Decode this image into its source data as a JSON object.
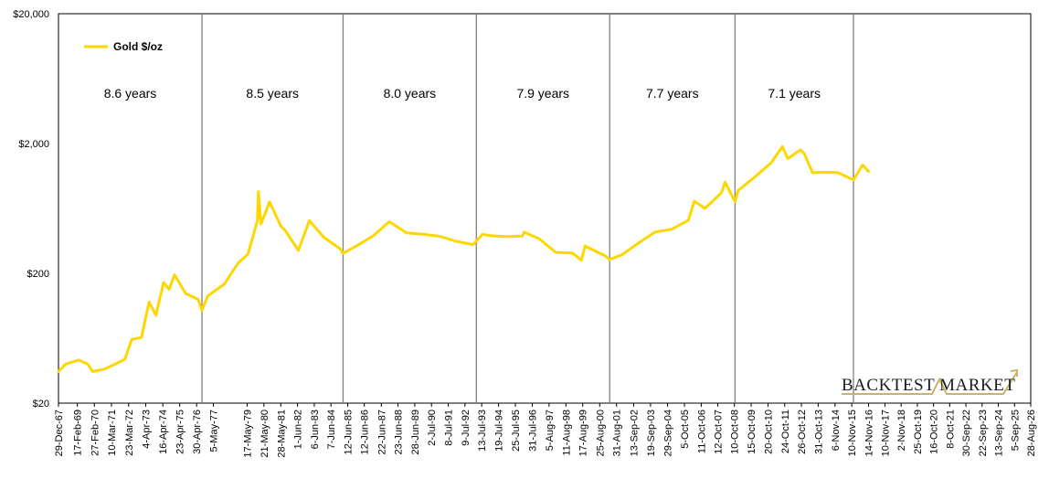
{
  "chart_data": {
    "type": "line",
    "yscale": "log",
    "ylim": [
      20,
      20000
    ],
    "y_ticks": [
      "$20",
      "$200",
      "$2,000",
      "$20,000"
    ],
    "y_tick_values": [
      20,
      200,
      2000,
      20000
    ],
    "x_range": [
      "1967-12-29",
      "2026-08-28"
    ],
    "x_ticks": [
      {
        "label": "29-Dec-67",
        "date": "1967-12-29"
      },
      {
        "label": "17-Feb-69",
        "date": "1969-02-17"
      },
      {
        "label": "27-Feb-70",
        "date": "1970-02-27"
      },
      {
        "label": "10-Mar-71",
        "date": "1971-03-10"
      },
      {
        "label": "23-Mar-72",
        "date": "1972-03-23"
      },
      {
        "label": "4-Apr-73",
        "date": "1973-04-04"
      },
      {
        "label": "16-Apr-74",
        "date": "1974-04-16"
      },
      {
        "label": "23-Apr-75",
        "date": "1975-04-23"
      },
      {
        "label": "30-Apr-76",
        "date": "1976-04-30"
      },
      {
        "label": "5-May-77",
        "date": "1977-05-05"
      },
      {
        "label": "17-May-79",
        "date": "1979-05-17"
      },
      {
        "label": "21-May-80",
        "date": "1980-05-21"
      },
      {
        "label": "28-May-81",
        "date": "1981-05-28"
      },
      {
        "label": "1-Jun-82",
        "date": "1982-06-01"
      },
      {
        "label": "6-Jun-83",
        "date": "1983-06-06"
      },
      {
        "label": "7-Jun-84",
        "date": "1984-06-07"
      },
      {
        "label": "12-Jun-85",
        "date": "1985-06-12"
      },
      {
        "label": "12-Jun-86",
        "date": "1986-06-12"
      },
      {
        "label": "22-Jun-87",
        "date": "1987-06-22"
      },
      {
        "label": "23-Jun-88",
        "date": "1988-06-23"
      },
      {
        "label": "28-Jun-89",
        "date": "1989-06-28"
      },
      {
        "label": "2-Jul-90",
        "date": "1990-07-02"
      },
      {
        "label": "8-Jul-91",
        "date": "1991-07-08"
      },
      {
        "label": "9-Jul-92",
        "date": "1992-07-09"
      },
      {
        "label": "13-Jul-93",
        "date": "1993-07-13"
      },
      {
        "label": "19-Jul-94",
        "date": "1994-07-19"
      },
      {
        "label": "25-Jul-95",
        "date": "1995-07-25"
      },
      {
        "label": "31-Jul-96",
        "date": "1996-07-31"
      },
      {
        "label": "5-Aug-97",
        "date": "1997-08-05"
      },
      {
        "label": "11-Aug-98",
        "date": "1998-08-11"
      },
      {
        "label": "17-Aug-99",
        "date": "1999-08-17"
      },
      {
        "label": "25-Aug-00",
        "date": "2000-08-25"
      },
      {
        "label": "31-Aug-01",
        "date": "2001-08-31"
      },
      {
        "label": "13-Sep-02",
        "date": "2002-09-13"
      },
      {
        "label": "19-Sep-03",
        "date": "2003-09-19"
      },
      {
        "label": "29-Sep-04",
        "date": "2004-09-29"
      },
      {
        "label": "5-Oct-05",
        "date": "2005-10-05"
      },
      {
        "label": "11-Oct-06",
        "date": "2006-10-11"
      },
      {
        "label": "12-Oct-07",
        "date": "2007-10-12"
      },
      {
        "label": "10-Oct-08",
        "date": "2008-10-10"
      },
      {
        "label": "15-Oct-09",
        "date": "2009-10-15"
      },
      {
        "label": "20-Oct-10",
        "date": "2010-10-20"
      },
      {
        "label": "24-Oct-11",
        "date": "2011-10-24"
      },
      {
        "label": "26-Oct-12",
        "date": "2012-10-26"
      },
      {
        "label": "31-Oct-13",
        "date": "2013-10-31"
      },
      {
        "label": "6-Nov-14",
        "date": "2014-11-06"
      },
      {
        "label": "10-Nov-15",
        "date": "2015-11-10"
      },
      {
        "label": "14-Nov-16",
        "date": "2016-11-14"
      },
      {
        "label": "10-Nov-17",
        "date": "2017-11-10"
      },
      {
        "label": "2-Nov-18",
        "date": "2018-11-02"
      },
      {
        "label": "25-Oct-19",
        "date": "2019-10-25"
      },
      {
        "label": "16-Oct-20",
        "date": "2020-10-16"
      },
      {
        "label": "8-Oct-21",
        "date": "2021-10-08"
      },
      {
        "label": "30-Sep-22",
        "date": "2022-09-30"
      },
      {
        "label": "22-Sep-23",
        "date": "2023-09-22"
      },
      {
        "label": "13-Sep-24",
        "date": "2024-09-13"
      },
      {
        "label": "5-Sep-25",
        "date": "2025-09-05"
      },
      {
        "label": "28-Aug-26",
        "date": "2026-08-28"
      }
    ],
    "series": [
      {
        "name": "Gold $/oz",
        "color": "#FFD700",
        "points": [
          [
            "1967-12-29",
            35.0
          ],
          [
            "1968-06-01",
            40.0
          ],
          [
            "1969-03-20",
            43.0
          ],
          [
            "1969-10-01",
            40.0
          ],
          [
            "1970-01-20",
            35.0
          ],
          [
            "1970-10-01",
            36.5
          ],
          [
            "1971-06-01",
            40.0
          ],
          [
            "1971-12-31",
            43.5
          ],
          [
            "1972-06-01",
            62.0
          ],
          [
            "1972-12-31",
            64.0
          ],
          [
            "1973-04-01",
            90.0
          ],
          [
            "1973-06-15",
            120.0
          ],
          [
            "1973-11-15",
            95.0
          ],
          [
            "1974-05-01",
            170.0
          ],
          [
            "1974-09-01",
            150.0
          ],
          [
            "1974-12-30",
            195.0
          ],
          [
            "1975-09-01",
            140.0
          ],
          [
            "1976-06-01",
            126.0
          ],
          [
            "1976-08-25",
            104.0
          ],
          [
            "1976-12-31",
            134.0
          ],
          [
            "1977-12-30",
            165.0
          ],
          [
            "1978-10-31",
            240.0
          ],
          [
            "1979-06-01",
            280.0
          ],
          [
            "1979-09-20",
            380.0
          ],
          [
            "1979-12-31",
            512.0
          ],
          [
            "1980-01-21",
            850.0
          ],
          [
            "1980-03-18",
            480.0
          ],
          [
            "1980-09-22",
            710.0
          ],
          [
            "1981-06-01",
            460.0
          ],
          [
            "1981-09-01",
            430.0
          ],
          [
            "1982-06-21",
            300.0
          ],
          [
            "1983-02-15",
            510.0
          ],
          [
            "1983-12-30",
            380.0
          ],
          [
            "1984-12-31",
            308.0
          ],
          [
            "1985-03-01",
            285.0
          ],
          [
            "1985-12-31",
            327.0
          ],
          [
            "1986-12-31",
            390.0
          ],
          [
            "1987-12-14",
            500.0
          ],
          [
            "1988-12-30",
            410.0
          ],
          [
            "1989-12-29",
            400.0
          ],
          [
            "1990-12-31",
            386.0
          ],
          [
            "1991-12-31",
            353.0
          ],
          [
            "1992-12-31",
            333.0
          ],
          [
            "1993-07-30",
            400.0
          ],
          [
            "1993-12-31",
            391.0
          ],
          [
            "1994-12-30",
            383.0
          ],
          [
            "1995-12-29",
            387.0
          ],
          [
            "1996-02-05",
            415.0
          ],
          [
            "1996-12-31",
            369.0
          ],
          [
            "1997-12-31",
            290.0
          ],
          [
            "1998-12-31",
            287.0
          ],
          [
            "1999-07-20",
            252.0
          ],
          [
            "1999-10-05",
            325.0
          ],
          [
            "2000-12-29",
            272.0
          ],
          [
            "2001-04-02",
            256.0
          ],
          [
            "2001-12-31",
            278.0
          ],
          [
            "2002-12-31",
            343.0
          ],
          [
            "2003-12-31",
            416.0
          ],
          [
            "2004-12-31",
            438.0
          ],
          [
            "2005-12-30",
            513.0
          ],
          [
            "2006-05-12",
            720.0
          ],
          [
            "2006-12-29",
            632.0
          ],
          [
            "2007-12-31",
            834.0
          ],
          [
            "2008-03-17",
            1011.0
          ],
          [
            "2008-10-24",
            712.0
          ],
          [
            "2008-12-31",
            869.0
          ],
          [
            "2009-12-31",
            1104.0
          ],
          [
            "2010-12-31",
            1421.0
          ],
          [
            "2011-09-05",
            1895.0
          ],
          [
            "2011-12-30",
            1531.0
          ],
          [
            "2012-10-05",
            1790.0
          ],
          [
            "2012-12-31",
            1664.0
          ],
          [
            "2013-06-28",
            1192.0
          ],
          [
            "2013-12-31",
            1201.0
          ],
          [
            "2014-12-31",
            1199.0
          ],
          [
            "2015-12-17",
            1049.0
          ],
          [
            "2016-07-06",
            1366.0
          ],
          [
            "2016-11-14",
            1220.0
          ]
        ]
      }
    ],
    "period_boundaries": [
      "1976-08-25",
      "1985-03-01",
      "1993-03-16",
      "2001-04-02",
      "2008-10-24",
      "2015-12-17"
    ],
    "period_labels": [
      "8.6 years",
      "8.5 years",
      "8.0 years",
      "7.9 years",
      "7.7 years",
      "7.1 years"
    ],
    "legend": {
      "label": "Gold $/oz",
      "position": "top-left"
    },
    "watermark": "BACKTEST MARKET"
  }
}
